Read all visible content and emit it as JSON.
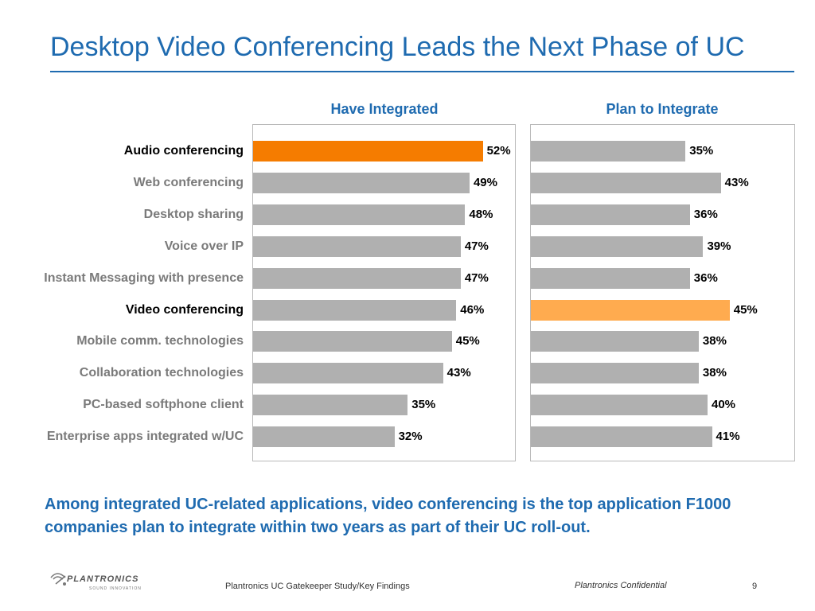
{
  "slide": {
    "title": "Desktop Video Conferencing Leads the Next Phase of UC",
    "summary": "Among integrated UC-related applications, video conferencing is the top application F1000 companies plan to integrate within two years as part of their UC roll-out.",
    "footer_source": "Plantronics UC Gatekeeper Study/Key Findings",
    "footer_confidential": "Plantronics Confidential",
    "page_number": "9",
    "logo_text": "PLANTRONICS",
    "logo_tagline": "SOUND INNOVATION"
  },
  "colors": {
    "bar_default": "#b0b0b0",
    "bar_highlight_have": "#f57c00",
    "bar_highlight_plan": "#ffab4f",
    "title": "#1f6bb0"
  },
  "chart_data": {
    "type": "bar",
    "orientation": "horizontal",
    "categories": [
      "Audio conferencing",
      "Web conferencing",
      "Desktop sharing",
      "Voice over IP",
      "Instant Messaging with presence",
      "Video conferencing",
      "Mobile comm. technologies",
      "Collaboration technologies",
      "PC-based softphone client",
      "Enterprise apps integrated w/UC"
    ],
    "highlighted_categories": [
      "Audio conferencing",
      "Video conferencing"
    ],
    "series": [
      {
        "name": "Have Integrated",
        "values": [
          52,
          49,
          48,
          47,
          47,
          46,
          45,
          43,
          35,
          32
        ],
        "labels": [
          "52%",
          "49%",
          "48%",
          "47%",
          "47%",
          "46%",
          "45%",
          "43%",
          "35%",
          "32%"
        ],
        "highlight_index": 0
      },
      {
        "name": "Plan to Integrate",
        "values": [
          35,
          43,
          36,
          39,
          36,
          45,
          38,
          38,
          40,
          41
        ],
        "labels": [
          "35%",
          "43%",
          "36%",
          "39%",
          "36%",
          "45%",
          "38%",
          "38%",
          "40%",
          "41%"
        ],
        "highlight_index": 5
      }
    ],
    "xlim": [
      0,
      60
    ],
    "grid": false,
    "legend": "none"
  }
}
